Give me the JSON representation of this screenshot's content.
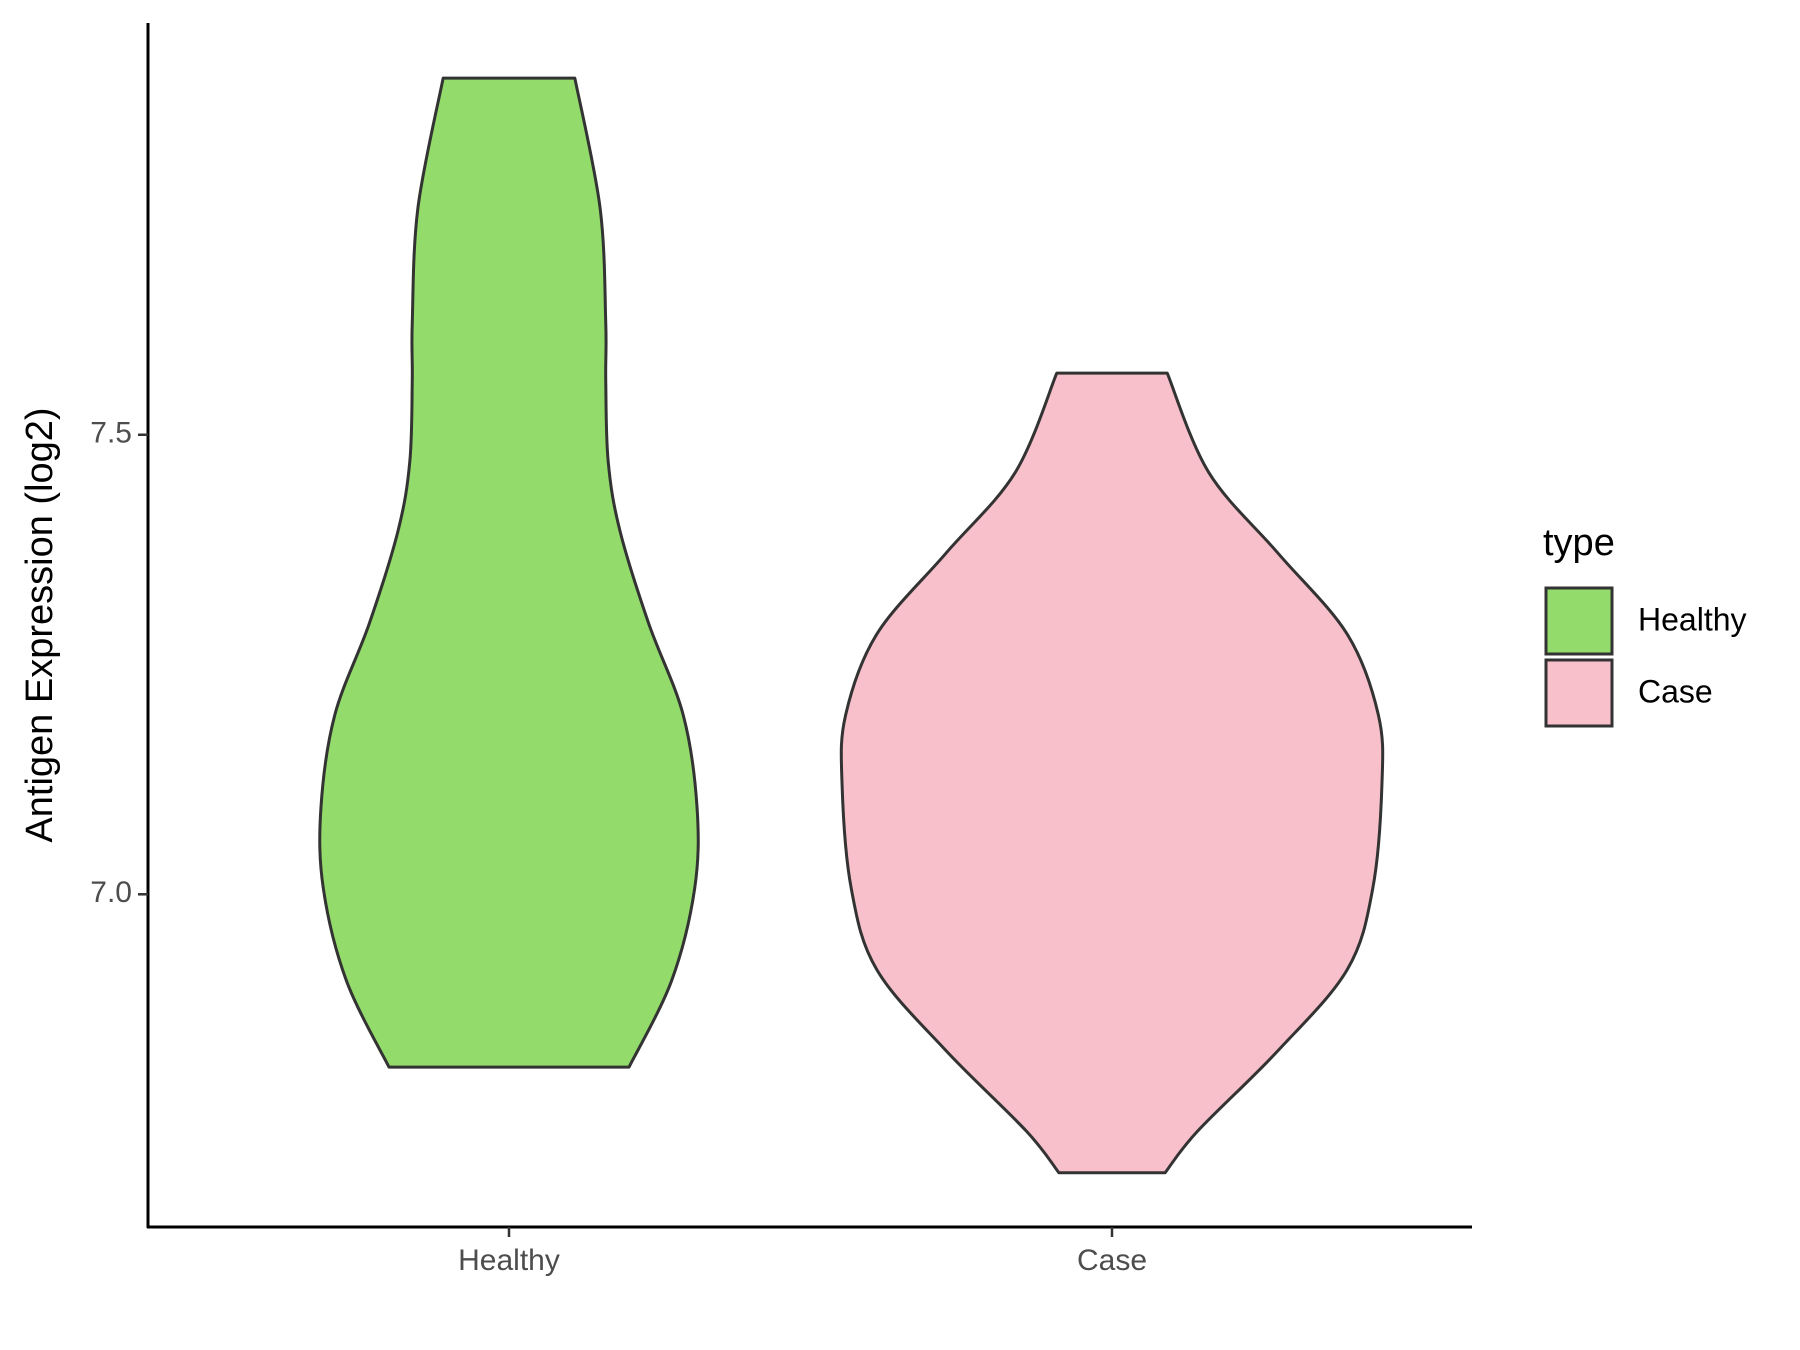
{
  "chart_data": {
    "type": "violin",
    "ylabel": "Antigen Expression (log2)",
    "categories": [
      "Healthy",
      "Case"
    ],
    "ylim": [
      6.638,
      7.948
    ],
    "yticks": [
      {
        "value": 7,
        "label": "7.0"
      },
      7.5
    ],
    "legend_title": "type",
    "legend": "right",
    "series": [
      {
        "name": "Healthy",
        "color": "#93db6b",
        "y": [
          7.888,
          7.747,
          7.622,
          7.559,
          7.471,
          7.396,
          7.295,
          7.195,
          7.094,
          7.006,
          6.906,
          6.812
        ],
        "width": [
          0.243,
          0.336,
          0.357,
          0.357,
          0.366,
          0.409,
          0.515,
          0.643,
          0.694,
          0.685,
          0.6,
          0.443
        ]
      },
      {
        "name": "Case",
        "color": "#f8c0cb",
        "y": [
          7.567,
          7.459,
          7.371,
          7.283,
          7.195,
          7.119,
          7.006,
          6.918,
          6.83,
          6.742,
          6.697
        ],
        "width": [
          0.204,
          0.357,
          0.613,
          0.868,
          0.983,
          0.996,
          0.962,
          0.868,
          0.613,
          0.315,
          0.196
        ]
      }
    ]
  }
}
